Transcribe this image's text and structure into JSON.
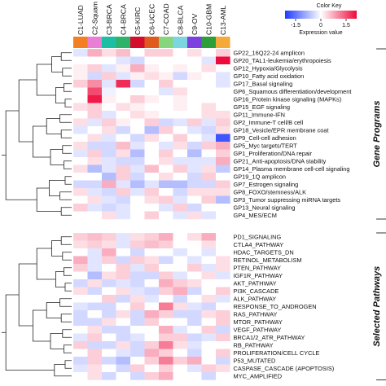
{
  "chart_data": {
    "type": "heatmap",
    "color_key": {
      "title": "Color Key",
      "xlabel": "Expression value",
      "ticks": [
        "-1.5",
        "0",
        "1.5"
      ],
      "range": [
        -1.5,
        1.5
      ],
      "colors": {
        "low": "#1f3cff",
        "mid": "#ffffff",
        "high": "#ee0a3c"
      }
    },
    "columns": [
      "C1-LUAD",
      "C2-Squam",
      "C3-BRCA",
      "C4-BRCA",
      "C5-KIRC",
      "C6-UCEC",
      "C7-COAD",
      "C8-BLCA",
      "C9-OV",
      "C10-GBM",
      "C13-AML"
    ],
    "column_colors": [
      "#f47f20",
      "#e87fd5",
      "#1dbfa3",
      "#2fb36a",
      "#d60c2d",
      "#e05a1e",
      "#86d67e",
      "#7cd6e0",
      "#7e3fe0",
      "#2c9e3a",
      "#f5a938"
    ],
    "sections": [
      {
        "title": "Gene Programs",
        "rows": [
          "GP22_16Q22-24 amplicon",
          "GP20_TAL1-leukemia/erythropoiesis",
          "GP12_Hypoxia/Glycolysis",
          "GP10_Fatty acid oxidation",
          "GP17_Basal signaling",
          "GP6_Squamous differentiation/development",
          "GP16_Protein kinase signaling (MAPKs)",
          "GP15_EGF signaling",
          "GP11_Immune-IFN",
          "GP2_Immune-T cell/B cell",
          "GP18_Vesicle/EPR membrane coat",
          "GP9_Cell-cell adhesion",
          "GP5_Myc targets/TERT",
          "GP1_Proliferation/DNA repair",
          "GP21_Anti-apoptosis/DNA stability",
          "GP14_Plasma membrane cell-cell signaling",
          "GP19_1Q amplicon",
          "GP7_Estrogen signaling",
          "GP8_FOXO/stemness/ALK",
          "GP3_Tumor suppressing miRNA targets",
          "GP13_Neural signaling",
          "GP4_MES/ECM"
        ],
        "values": [
          [
            -0.2,
            0.5,
            0.2,
            0.4,
            0.0,
            0.3,
            0.3,
            0.0,
            0.2,
            0.0,
            0.3
          ],
          [
            0.0,
            0.0,
            0.0,
            -0.2,
            -0.3,
            0.0,
            0.0,
            0.0,
            0.0,
            -0.2,
            1.6
          ],
          [
            0.1,
            0.3,
            -0.2,
            0.1,
            0.5,
            0.1,
            0.0,
            0.1,
            0.0,
            0.2,
            0.0
          ],
          [
            0.1,
            -0.3,
            0.3,
            -0.2,
            0.1,
            0.2,
            0.1,
            -0.3,
            0.1,
            0.0,
            -0.2
          ],
          [
            0.3,
            0.7,
            -0.2,
            1.3,
            -0.3,
            0.0,
            0.3,
            0.0,
            0.0,
            0.0,
            -0.2
          ],
          [
            0.0,
            1.1,
            -0.1,
            0.0,
            0.0,
            0.0,
            -0.2,
            0.2,
            0.0,
            0.0,
            0.0
          ],
          [
            0.0,
            1.4,
            0.1,
            0.0,
            0.3,
            0.1,
            0.0,
            0.1,
            0.0,
            0.0,
            0.0
          ],
          [
            0.2,
            0.3,
            0.0,
            0.2,
            0.1,
            0.0,
            0.0,
            0.1,
            0.0,
            0.2,
            0.0
          ],
          [
            0.0,
            0.3,
            -0.2,
            0.0,
            0.2,
            0.1,
            0.0,
            0.0,
            0.0,
            0.2,
            0.2
          ],
          [
            0.2,
            -0.2,
            0.3,
            0.1,
            0.0,
            0.3,
            -0.3,
            -0.2,
            0.3,
            -0.2,
            0.3
          ],
          [
            -0.2,
            0.0,
            0.2,
            -0.3,
            0.0,
            -0.5,
            0.3,
            0.0,
            -0.2,
            -0.3,
            0.2
          ],
          [
            0.0,
            0.2,
            -0.2,
            0.0,
            -0.3,
            0.2,
            0.0,
            0.3,
            0.0,
            -0.2,
            -1.3
          ],
          [
            0.2,
            -0.3,
            -0.3,
            0.4,
            -0.2,
            0.0,
            -0.2,
            0.2,
            -0.3,
            0.3,
            0.5
          ],
          [
            -0.2,
            0.3,
            -0.3,
            0.2,
            -0.5,
            0.0,
            0.3,
            0.0,
            -0.5,
            0.0,
            0.3
          ],
          [
            0.0,
            0.2,
            -0.2,
            -0.3,
            -0.3,
            0.0,
            0.2,
            -0.2,
            -0.2,
            -0.2,
            0.5
          ],
          [
            0.2,
            -0.5,
            -0.2,
            0.3,
            -0.2,
            0.4,
            0.0,
            0.3,
            -0.2,
            0.2,
            -0.4
          ],
          [
            0.0,
            0.0,
            -0.5,
            0.3,
            -0.3,
            0.0,
            0.2,
            0.0,
            -0.3,
            0.3,
            0.0
          ],
          [
            -0.3,
            -0.3,
            0.5,
            -0.2,
            -0.5,
            -0.2,
            -0.5,
            -0.5,
            -0.3,
            -0.3,
            0.3
          ],
          [
            0.2,
            -0.2,
            -0.3,
            0.3,
            -0.2,
            0.3,
            0.0,
            -0.3,
            0.2,
            0.2,
            0.2
          ],
          [
            0.0,
            0.2,
            -0.2,
            -0.3,
            0.0,
            0.2,
            0.3,
            -0.2,
            0.0,
            0.3,
            -0.5
          ],
          [
            0.3,
            -0.2,
            -0.3,
            -0.2,
            0.0,
            0.0,
            -0.2,
            0.3,
            -0.3,
            0.0,
            0.0
          ],
          [
            0.0,
            0.0,
            0.2,
            -0.2,
            0.0,
            0.3,
            0.0,
            -0.2,
            0.2,
            -0.2,
            0.0
          ]
        ]
      },
      {
        "title": "Selected Pathways",
        "rows": [
          "PD1_SIGNALING",
          "CTLA4_PATHWAY",
          "HDAC_TARGETS_DN",
          "RETINOL_METABOLISM",
          "PTEN_PATHWAY",
          "IGF1R_PATHWAY",
          "AKT_PATHWAY",
          "PI3K_CASCADE",
          "ALK_PATHWAY",
          "RESPONSE_TO_ANDROGEN",
          "RAS_PATHWAY",
          "MTOR_PATHWAY",
          "VEGF_PATHWAY",
          "BRCA1/2_ATR_PATHWAY",
          "RB_PATHWAY",
          "PROLIFERATION/CELL CYCLE",
          "P53_MUTATED",
          "CASPASE_CASCADE (APOPTOSIS)",
          "MYC_AMPLIFIED"
        ],
        "values": [
          [
            0.3,
            0.4,
            0.3,
            -0.2,
            0.2,
            0.3,
            0.5,
            0.0,
            0.2,
            0.5,
            0.0
          ],
          [
            0.2,
            0.3,
            0.2,
            -0.2,
            0.3,
            0.4,
            0.3,
            0.0,
            0.0,
            0.2,
            0.0
          ],
          [
            0.0,
            -0.2,
            0.5,
            0.0,
            -0.3,
            0.0,
            0.0,
            -0.2,
            0.0,
            -0.2,
            0.0
          ],
          [
            0.5,
            -0.2,
            0.3,
            -0.3,
            0.3,
            0.2,
            -0.3,
            0.0,
            -0.2,
            0.0,
            0.2
          ],
          [
            0.3,
            -0.2,
            0.0,
            0.3,
            -0.2,
            0.3,
            0.0,
            0.0,
            0.3,
            -0.2,
            0.2
          ],
          [
            0.0,
            -0.5,
            0.2,
            0.3,
            -0.3,
            -0.3,
            0.3,
            -0.2,
            0.0,
            0.2,
            -0.2
          ],
          [
            -0.3,
            0.2,
            -0.3,
            -0.2,
            -0.3,
            0.0,
            0.5,
            0.3,
            0.2,
            0.0,
            0.0
          ],
          [
            0.2,
            -0.3,
            0.0,
            0.2,
            -0.2,
            -0.3,
            0.3,
            0.5,
            -0.3,
            0.0,
            0.3
          ],
          [
            0.0,
            0.0,
            0.3,
            -0.3,
            0.2,
            -0.2,
            0.0,
            -0.3,
            0.0,
            0.2,
            -0.2
          ],
          [
            -0.2,
            -0.3,
            -0.3,
            0.0,
            0.3,
            0.0,
            0.8,
            0.2,
            -0.2,
            -0.3,
            0.0
          ],
          [
            -0.3,
            0.0,
            -0.3,
            0.2,
            -0.3,
            0.5,
            0.3,
            -0.3,
            -0.3,
            0.2,
            0.3
          ],
          [
            -0.3,
            -0.3,
            0.2,
            0.0,
            -0.3,
            0.3,
            0.0,
            0.0,
            -0.3,
            0.0,
            0.3
          ],
          [
            0.0,
            0.2,
            -0.3,
            -0.3,
            0.0,
            0.0,
            0.5,
            -0.2,
            0.0,
            0.3,
            -0.3
          ],
          [
            -0.2,
            0.3,
            0.0,
            -0.3,
            -0.2,
            0.0,
            0.3,
            0.3,
            -0.3,
            -0.2,
            0.3
          ],
          [
            0.3,
            -0.3,
            -0.3,
            0.2,
            -0.3,
            0.3,
            0.8,
            0.2,
            -0.2,
            0.0,
            0.0
          ],
          [
            0.0,
            0.3,
            0.0,
            -0.2,
            -0.3,
            0.5,
            0.3,
            0.0,
            -0.3,
            0.0,
            0.3
          ],
          [
            -0.3,
            0.3,
            -0.3,
            -0.5,
            0.0,
            0.3,
            0.8,
            0.3,
            0.5,
            0.0,
            -0.3
          ],
          [
            -0.2,
            0.2,
            0.0,
            -0.3,
            0.3,
            0.0,
            0.3,
            0.0,
            -0.2,
            0.3,
            0.2
          ],
          [
            0.0,
            0.2,
            -0.3,
            0.0,
            -0.3,
            0.3,
            0.5,
            0.0,
            0.0,
            -0.3,
            0.0
          ]
        ]
      }
    ]
  }
}
